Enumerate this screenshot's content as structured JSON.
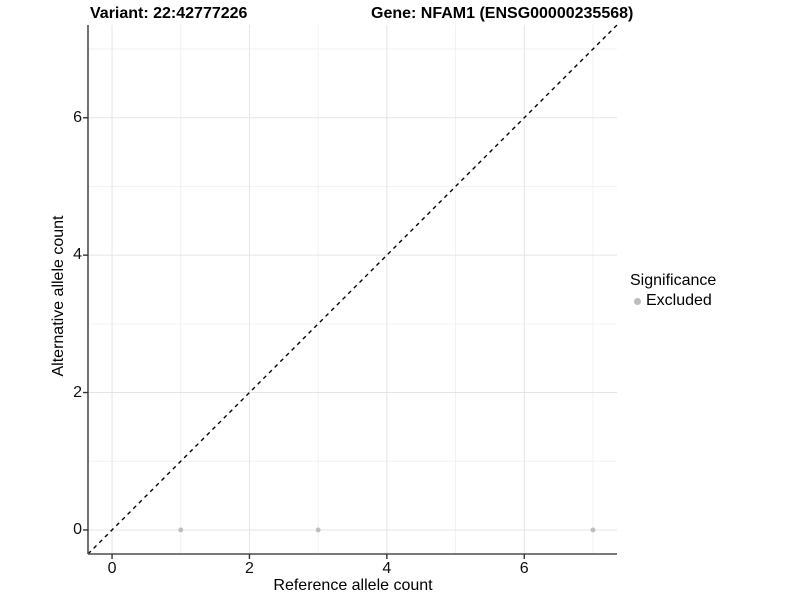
{
  "chart_data": {
    "type": "scatter",
    "title_left": "Variant: 22:42777226",
    "title_right": "Gene: NFAM1 (ENSG00000235568)",
    "xlabel": "Reference allele count",
    "ylabel": "Alternative allele count",
    "xlim": [
      -0.35,
      7.35
    ],
    "ylim": [
      -0.35,
      7.35
    ],
    "x_major_ticks": [
      0,
      2,
      4,
      6
    ],
    "x_minor_ticks": [
      1,
      3,
      5,
      7
    ],
    "y_major_ticks": [
      0,
      2,
      4,
      6
    ],
    "y_minor_ticks": [
      1,
      3,
      5,
      7
    ],
    "grid": "major+minor",
    "identity_line": {
      "style": "dashed",
      "from": -0.35,
      "to": 7.35
    },
    "series": [
      {
        "name": "Excluded",
        "points": [
          [
            1,
            0
          ],
          [
            3,
            0
          ],
          [
            7,
            0
          ]
        ]
      }
    ],
    "legend": {
      "position": "right",
      "title": "Significance",
      "items": [
        {
          "label": "Excluded"
        }
      ]
    },
    "colors": {
      "point": "#bdbdbd",
      "identity_line": "#000000",
      "axis_line": "#4d4d4d",
      "tick_mark": "#333333",
      "grid_major": "#e5e5e5",
      "grid_minor": "#f2f2f2",
      "background": "#ffffff"
    }
  }
}
